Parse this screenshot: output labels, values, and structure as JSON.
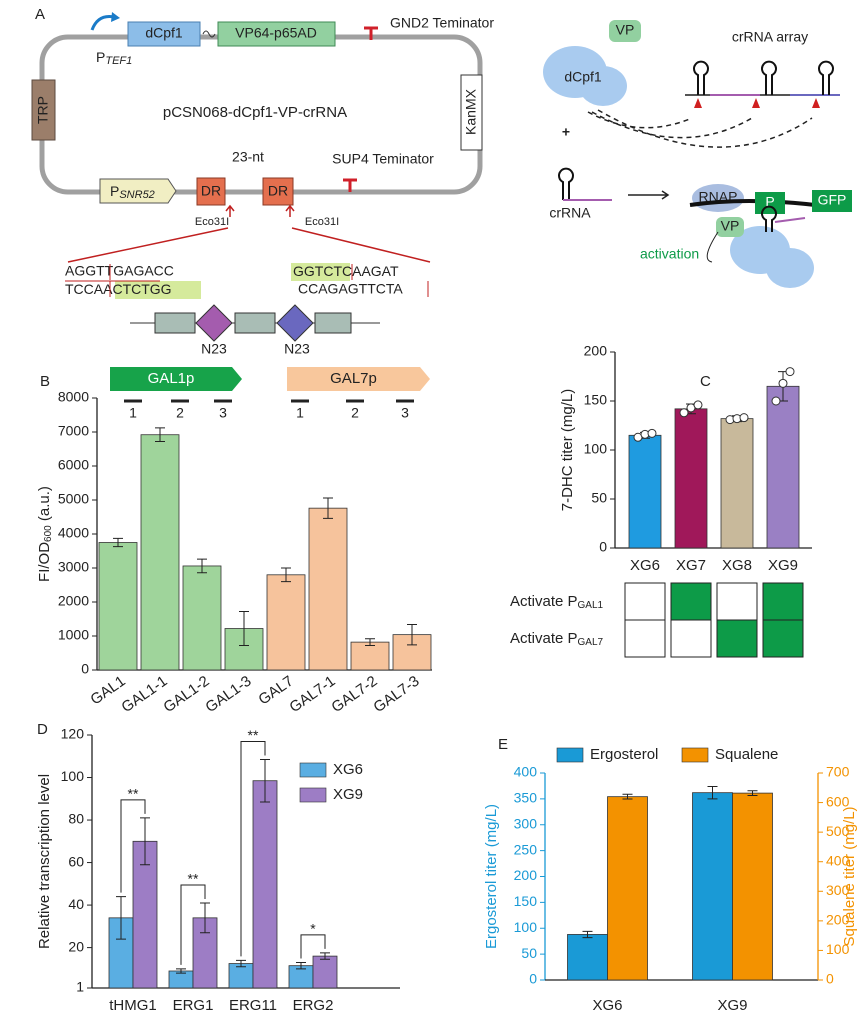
{
  "diagram": {
    "panel_a": "A",
    "dcpf1": "dCpf1",
    "vp64": "VP64-p65AD",
    "gnd2": "GND2 Teminator",
    "ptef1": {
      "p": "P",
      "sub": "TEF1"
    },
    "trp": "TRP",
    "plasmid": "pCSN068-dCpf1-VP-crRNA",
    "kanmx": "KanMX",
    "nt23": "23-nt",
    "sup4": "SUP4 Teminator",
    "psnr52": {
      "p": "P",
      "sub": "SNR52"
    },
    "dr": [
      "DR",
      "DR"
    ],
    "eco": [
      "Eco31I",
      "Eco31I"
    ],
    "seq": {
      "top_left": "AGGTTGAGACC",
      "bottom_left": [
        "TCCA",
        "ACTCTGG"
      ],
      "top_right": [
        "GGTCTC",
        "AAGAT"
      ],
      "bottom_right": "CCAGAGTTCTA"
    },
    "n23": [
      "N23",
      "N23"
    ],
    "vp": [
      "VP",
      "VP"
    ],
    "dcpf1_protein": "dCpf1",
    "array": "crRNA array",
    "plus": "+",
    "crrna": "crRNA",
    "rnap": "RNAP",
    "gfp_p": "P",
    "gfp": "GFP",
    "activation": "activation"
  },
  "chart_data": [
    {
      "type": "bar",
      "panel": "B",
      "categories": [
        "GAL1",
        "GAL1-1",
        "GAL1-2",
        "GAL1-3",
        "GAL7",
        "GAL7-1",
        "GAL7-2",
        "GAL7-3"
      ],
      "values": [
        3750,
        6920,
        3060,
        1220,
        2800,
        4760,
        820,
        1040
      ],
      "errors": [
        120,
        200,
        200,
        500,
        200,
        300,
        100,
        300
      ],
      "colors": [
        "#9fd49b",
        "#9fd49b",
        "#9fd49b",
        "#9fd49b",
        "#f6c39c",
        "#f6c39c",
        "#f6c39c",
        "#f6c39c"
      ],
      "ylim": [
        0,
        8000
      ],
      "yticks": [
        0,
        1000,
        2000,
        3000,
        4000,
        5000,
        6000,
        7000,
        8000
      ],
      "y_label": [
        "FI/OD",
        "600",
        " (a.u.)"
      ],
      "promoters": [
        {
          "name": "GAL1p",
          "color": "#17a34a",
          "sites": [
            "1",
            "2",
            "3"
          ]
        },
        {
          "name": "GAL7p",
          "color": "#f8c79c",
          "sites": [
            "1",
            "2",
            "3"
          ]
        }
      ]
    },
    {
      "type": "bar",
      "panel": "C",
      "categories": [
        "XG6",
        "XG7",
        "XG8",
        "XG9"
      ],
      "values": [
        115,
        142,
        132,
        165
      ],
      "errors": [
        3,
        5,
        3,
        15
      ],
      "points": [
        [
          113,
          116,
          117
        ],
        [
          138,
          143,
          146
        ],
        [
          131,
          132,
          133
        ],
        [
          150,
          168,
          180
        ]
      ],
      "colors": [
        "#1f9be0",
        "#a0185a",
        "#c8b99b",
        "#9a80c4"
      ],
      "ylim": [
        0,
        200
      ],
      "yticks": [
        0,
        50,
        100,
        150,
        200
      ],
      "y_label": "7-DHC titer (mg/L)",
      "activation": {
        "color": "#0d9b48",
        "rows": [
          {
            "label": [
              "Activate P",
              "GAL1"
            ],
            "active": [
              false,
              true,
              false,
              true
            ]
          },
          {
            "label": [
              "Activate P",
              "GAL7"
            ],
            "active": [
              false,
              false,
              true,
              true
            ]
          }
        ]
      }
    },
    {
      "type": "bar",
      "panel": "D",
      "categories": [
        "tHMG1",
        "ERG1",
        "ERG11",
        "ERG2"
      ],
      "series": [
        {
          "name": "XG6",
          "color": "#5aaee2",
          "values": [
            34,
            9,
            12.5,
            11.5
          ],
          "errors": [
            10,
            1,
            1.5,
            1.5
          ]
        },
        {
          "name": "XG9",
          "color": "#9d7dc5",
          "values": [
            70,
            34,
            98.5,
            16
          ],
          "errors": [
            11,
            7,
            10,
            1.5
          ]
        }
      ],
      "significance": [
        "**",
        "**",
        "**",
        "*"
      ],
      "ylim": [
        1,
        120
      ],
      "yticks": [
        1,
        20,
        40,
        60,
        80,
        100,
        120
      ],
      "y_label": "Relative transcription level"
    },
    {
      "type": "bar",
      "panel": "E",
      "categories": [
        "XG6",
        "XG9"
      ],
      "series": [
        {
          "name": "Ergosterol",
          "color": "#1a9ad6",
          "values": [
            88,
            362
          ],
          "errors": [
            6,
            12
          ]
        },
        {
          "name": "Squalene",
          "color": "#f39200",
          "axis": "y2",
          "values": [
            620,
            632
          ],
          "errors": [
            8,
            8
          ]
        }
      ],
      "ylim": [
        0,
        400
      ],
      "yticks": [
        0,
        50,
        100,
        150,
        200,
        250,
        300,
        350,
        400
      ],
      "y2lim": [
        0,
        700
      ],
      "y2ticks": [
        0,
        100,
        200,
        300,
        400,
        500,
        600,
        700
      ],
      "y_label": "Ergosterol titer (mg/L)",
      "y2_label": "Squalene titer (mg/L)"
    }
  ]
}
